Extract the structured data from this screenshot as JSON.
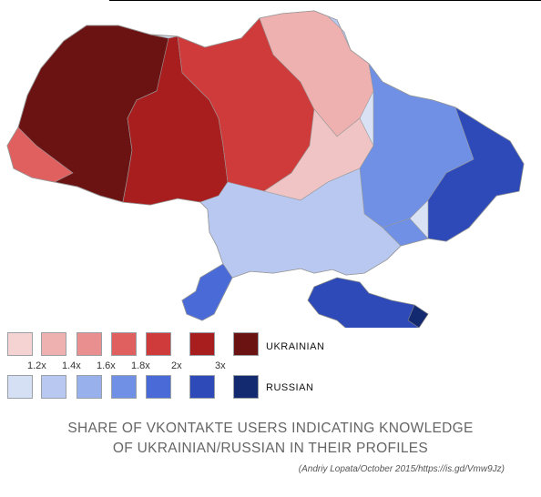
{
  "legend": {
    "ukrainian_label": "UKRAINIAN",
    "russian_label": "RUSSIAN",
    "multipliers": [
      "1.2x",
      "1.4x",
      "1.6x",
      "1.8x",
      "2x",
      "3x"
    ],
    "ukrainian_colors": [
      "#f6d3d3",
      "#efb0b0",
      "#e98f8f",
      "#e06060",
      "#cf3a3a",
      "#a81e1e",
      "#6b1212"
    ],
    "russian_colors": [
      "#d6e0f5",
      "#b8c8f0",
      "#98b0ec",
      "#6f90e4",
      "#4a6ad8",
      "#2d4ab8",
      "#142a70"
    ]
  },
  "title": {
    "line1": "SHARE OF VKONTAKTE USERS INDICATING KNOWLEDGE",
    "line2": "OF UKRAINIAN/RUSSIAN IN THEIR PROFILES"
  },
  "credit": "(Andriy Lopata/October 2015/https://is.gd/Vmw9Jz)"
}
